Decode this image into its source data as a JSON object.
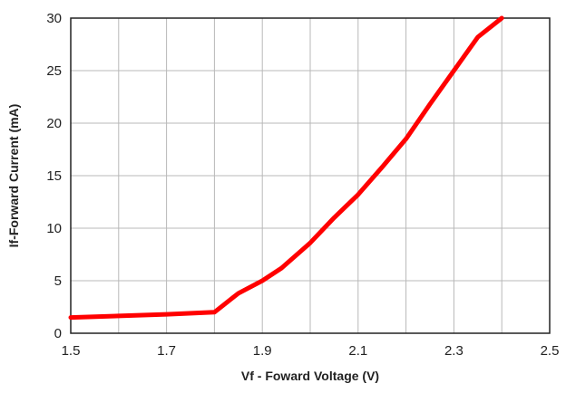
{
  "chart_data": {
    "type": "line",
    "title": "",
    "xlabel": "Vf - Foward Voltage (V)",
    "ylabel": "If-Forward Current (mA)",
    "xlim": [
      1.5,
      2.5
    ],
    "ylim": [
      0,
      30
    ],
    "x_ticks": [
      "1.5",
      "1.7",
      "1.9",
      "2.1",
      "2.3",
      "2.5"
    ],
    "y_ticks": [
      "0",
      "5",
      "10",
      "15",
      "20",
      "25",
      "30"
    ],
    "grid": true,
    "line_color": "#ff0000",
    "series": [
      {
        "x": [
          1.5,
          1.6,
          1.7,
          1.8,
          1.85,
          1.9,
          1.94,
          2.0,
          2.05,
          2.1,
          2.15,
          2.2,
          2.25,
          2.3,
          2.35,
          2.4
        ],
        "values": [
          1.5,
          1.65,
          1.8,
          2.0,
          3.8,
          5.0,
          6.2,
          8.6,
          11.0,
          13.2,
          15.8,
          18.5,
          21.8,
          25.0,
          28.2,
          30.0
        ]
      }
    ]
  }
}
